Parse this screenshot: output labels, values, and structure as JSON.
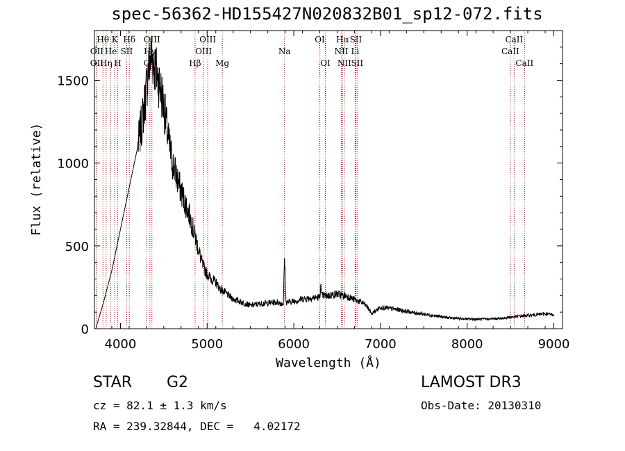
{
  "chart_data": {
    "type": "line",
    "title": "spec-56362-HD155427N020832B01_sp12-072.fits",
    "xlabel": "Wavelength (Å)",
    "ylabel": "Flux (relative)",
    "xlim": [
      3700,
      9100
    ],
    "ylim": [
      0,
      1800
    ],
    "xticks": [
      4000,
      5000,
      6000,
      7000,
      8000,
      9000
    ],
    "xtick_labels": [
      "4000",
      "5000",
      "6000",
      "7000",
      "8000",
      "9000"
    ],
    "yticks": [
      0,
      500,
      1000,
      1500
    ],
    "ytick_labels": [
      "0",
      "500",
      "1000",
      "1500"
    ],
    "series": [
      {
        "name": "spectrum",
        "x": [
          3715,
          3800,
          3900,
          4000,
          4100,
          4200,
          4250,
          4300,
          4320,
          4340,
          4360,
          4400,
          4450,
          4500,
          4550,
          4600,
          4700,
          4800,
          4860,
          4900,
          4950,
          5000,
          5050,
          5100,
          5150,
          5200,
          5300,
          5400,
          5500,
          5600,
          5700,
          5800,
          5880,
          5893,
          5910,
          6000,
          6100,
          6200,
          6300,
          6310,
          6320,
          6400,
          6500,
          6560,
          6600,
          6700,
          6800,
          6850,
          6900,
          6950,
          7000,
          7200,
          7400,
          7600,
          7800,
          8000,
          8200,
          8400,
          8500,
          8600,
          8700,
          8800,
          8900,
          9000
        ],
        "y": [
          0,
          150,
          350,
          600,
          850,
          1100,
          1250,
          1450,
          1560,
          1620,
          1650,
          1580,
          1480,
          1350,
          1150,
          1000,
          830,
          680,
          560,
          480,
          380,
          330,
          300,
          280,
          240,
          220,
          180,
          160,
          140,
          150,
          155,
          160,
          150,
          430,
          160,
          165,
          180,
          185,
          190,
          270,
          200,
          200,
          210,
          200,
          200,
          175,
          155,
          130,
          90,
          110,
          130,
          115,
          95,
          80,
          65,
          58,
          58,
          62,
          70,
          75,
          80,
          85,
          90,
          85
        ]
      }
    ],
    "spectral_lines": [
      {
        "label": "OII",
        "x": 3727,
        "row": 2
      },
      {
        "label": "OII",
        "x": 3727,
        "row": 3
      },
      {
        "label": "Hθ",
        "x": 3798,
        "row": 1
      },
      {
        "label": "Hη",
        "x": 3835,
        "row": 3
      },
      {
        "label": "He",
        "x": 3889,
        "row": 2
      },
      {
        "label": "K",
        "x": 3934,
        "row": 1
      },
      {
        "label": "H",
        "x": 3969,
        "row": 3
      },
      {
        "label": "SII",
        "x": 4072,
        "row": 2
      },
      {
        "label": "Hδ",
        "x": 4102,
        "row": 1
      },
      {
        "label": "G",
        "x": 4304,
        "row": 3
      },
      {
        "label": "OIII",
        "x": 4363,
        "row": 1
      },
      {
        "label": "Hγ",
        "x": 4340,
        "row": 2
      },
      {
        "label": "Hβ",
        "x": 4861,
        "row": 3
      },
      {
        "label": "OIII",
        "x": 4959,
        "row": 2
      },
      {
        "label": "OIII",
        "x": 5007,
        "row": 1
      },
      {
        "label": "Mg",
        "x": 5175,
        "row": 3
      },
      {
        "label": "Na",
        "x": 5893,
        "row": 2
      },
      {
        "label": "OI",
        "x": 6300,
        "row": 1
      },
      {
        "label": "OI",
        "x": 6364,
        "row": 3
      },
      {
        "label": "NII",
        "x": 6548,
        "row": 2
      },
      {
        "label": "Hα",
        "x": 6563,
        "row": 1
      },
      {
        "label": "NII",
        "x": 6583,
        "row": 3
      },
      {
        "label": "SII",
        "x": 6716,
        "row": 1
      },
      {
        "label": "Li",
        "x": 6708,
        "row": 2
      },
      {
        "label": "SII",
        "x": 6731,
        "row": 3
      },
      {
        "label": "CaII",
        "x": 8498,
        "row": 2
      },
      {
        "label": "CaII",
        "x": 8542,
        "row": 1
      },
      {
        "label": "CaII",
        "x": 8662,
        "row": 3
      }
    ]
  },
  "info": {
    "object_type": "STAR",
    "subclass": "G2",
    "survey": "LAMOST DR3",
    "redshift": "cz = 82.1 ± 1.3 km/s",
    "obs_date": "Obs-Date: 20130310",
    "coords": "RA = 239.32844, DEC =   4.02172"
  },
  "colors": {
    "background": "#ffffff",
    "foreground": "#000000",
    "line_marker": "#c00000"
  }
}
